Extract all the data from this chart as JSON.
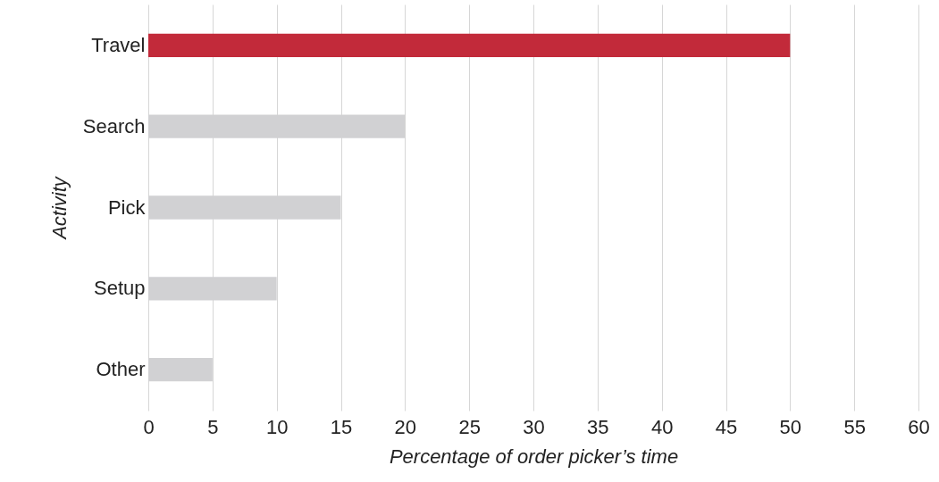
{
  "chart_data": {
    "type": "bar",
    "orientation": "horizontal",
    "xlabel": "Percentage of order picker’s time",
    "ylabel": "Activity",
    "categories": [
      "Travel",
      "Search",
      "Pick",
      "Setup",
      "Other"
    ],
    "values": [
      50,
      20,
      15,
      10,
      5
    ],
    "colors": [
      "#c22a3a",
      "#d1d1d3",
      "#d1d1d3",
      "#d1d1d3",
      "#d1d1d3"
    ],
    "xlim": [
      0,
      60
    ],
    "xticks": [
      0,
      5,
      10,
      15,
      20,
      25,
      30,
      35,
      40,
      45,
      50,
      55,
      60
    ],
    "grid": "x"
  }
}
